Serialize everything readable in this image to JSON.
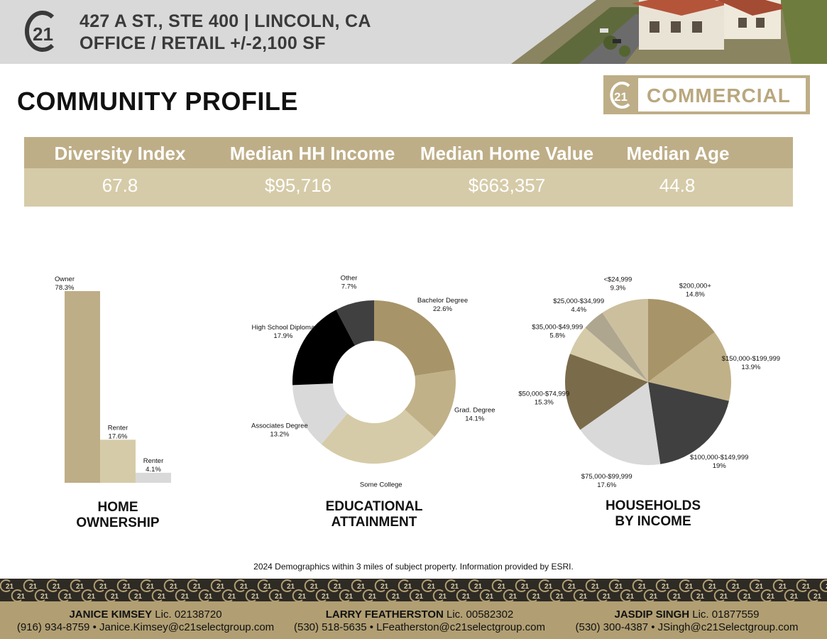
{
  "header": {
    "line1": "427 A ST., STE 400 | LINCOLN, CA",
    "line2": "OFFICE / RETAIL  +/-2,100 SF",
    "logo_text": "21"
  },
  "page_title": "COMMUNITY PROFILE",
  "brand": {
    "mark": "21",
    "word": "COMMERCIAL"
  },
  "stats": [
    {
      "label": "Diversity Index",
      "value": "67.8"
    },
    {
      "label": "Median HH Income",
      "value": "$95,716"
    },
    {
      "label": "Median Home Value",
      "value": "$663,357"
    },
    {
      "label": "Median Age",
      "value": "44.8"
    }
  ],
  "chart_titles": {
    "home_line1": "HOME",
    "home_line2": "OWNERSHIP",
    "edu_line1": "EDUCATIONAL",
    "edu_line2": "ATTAINMENT",
    "inc_line1": "HOUSEHOLDS",
    "inc_line2": "BY INCOME"
  },
  "chart_data": [
    {
      "type": "bar",
      "title": "HOME OWNERSHIP",
      "categories": [
        "Owner",
        "Renter",
        "Renter"
      ],
      "values": [
        78.3,
        17.6,
        4.1
      ],
      "value_labels": [
        "78.3%",
        "17.6%",
        "4.1%"
      ],
      "colors": [
        "#beae87",
        "#d6cba8",
        "#d9d9d9"
      ],
      "ylim": [
        0,
        100
      ]
    },
    {
      "type": "pie",
      "donut": true,
      "title": "EDUCATIONAL ATTAINMENT",
      "labels": [
        "Bachelor Degree",
        "Grad. Degree",
        "Some College",
        "Associates Degree",
        "High School Diploma",
        "Other"
      ],
      "values": [
        22.6,
        14.1,
        24.5,
        13.2,
        17.9,
        7.7
      ],
      "value_labels": [
        "22.6%",
        "14.1%",
        "24.5%",
        "13.2%",
        "17.9%",
        "7.7%"
      ],
      "colors": [
        "#a89469",
        "#c1b188",
        "#d6cba8",
        "#d9d9d9",
        "#000000",
        "#404040"
      ]
    },
    {
      "type": "pie",
      "title": "HOUSEHOLDS BY INCOME",
      "labels": [
        "$200,000+",
        "$150,000-$199,999",
        "$100,000-$149,999",
        "$75,000-$99,999",
        "$50,000-$74,999",
        "$35,000-$49,999",
        "$25,000-$34,999",
        "<$24,999"
      ],
      "values": [
        14.8,
        13.9,
        19,
        17.6,
        15.3,
        5.8,
        4.4,
        9.3
      ],
      "value_labels": [
        "14.8%",
        "13.9%",
        "19%",
        "17.6%",
        "15.3%",
        "5.8%",
        "4.4%",
        "9.3%"
      ],
      "colors": [
        "#a89469",
        "#c1b188",
        "#404040",
        "#d9d9d9",
        "#7a6b4b",
        "#d6cba8",
        "#aea68f",
        "#cbbf9e"
      ]
    }
  ],
  "footnote": "2024 Demographics within 3 miles of subject property. Information provided by ESRI.",
  "contacts": [
    {
      "name": "JANICE KIMSEY",
      "lic": " Lic. 02138720",
      "details": "(916) 934-8759 • Janice.Kimsey@c21selectgroup.com"
    },
    {
      "name": "LARRY FEATHERSTON",
      "lic": " Lic. 00582302",
      "details": "(530) 518-5635 • LFeatherston@c21selectgroup.com"
    },
    {
      "name": "JASDIP SINGH",
      "lic": " Lic. 01877559",
      "details": "(530) 300-4387 • JSingh@c21Selectgroup.com"
    }
  ]
}
